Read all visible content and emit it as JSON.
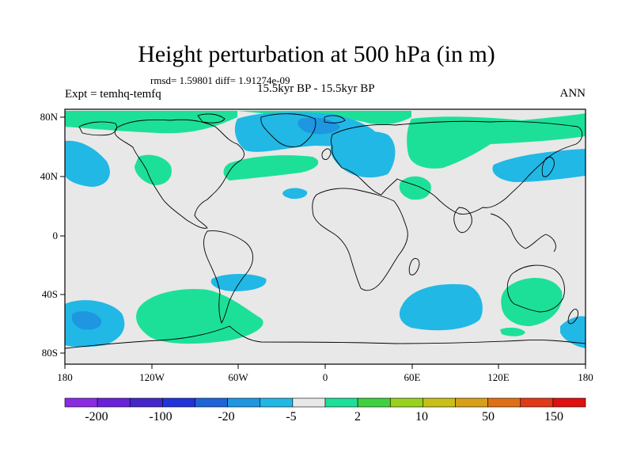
{
  "title": "Height perturbation at 500 hPa (in m)",
  "stats": "rmsd= 1.59801 diff= 1.91274e-09",
  "expt": "Expt = temhq-temfq",
  "period": "15.5kyr BP - 15.5kyr BP",
  "season": "ANN",
  "lon_ticks": [
    "180",
    "120W",
    "60W",
    "0",
    "60E",
    "120E",
    "180"
  ],
  "lat_ticks": [
    "80N",
    "40N",
    "0",
    "40S",
    "80S"
  ],
  "colorbar": {
    "colors": [
      "#8a2be2",
      "#6a22d8",
      "#4527c9",
      "#2234d8",
      "#1e64d6",
      "#1e96e0",
      "#21b8e6",
      "#e8e8e8",
      "#1de098",
      "#40d040",
      "#98d21e",
      "#c8c018",
      "#d8a018",
      "#e07018",
      "#e03a18",
      "#e01010"
    ],
    "labels": [
      "-200",
      "-100",
      "-20",
      "-5",
      "2",
      "10",
      "50",
      "150"
    ]
  },
  "colors": {
    "neutral": "#e8e8e8",
    "light_blue": "#21b8e6",
    "mid_blue": "#1e96e0",
    "teal_green": "#1de098",
    "green": "#40d040"
  }
}
